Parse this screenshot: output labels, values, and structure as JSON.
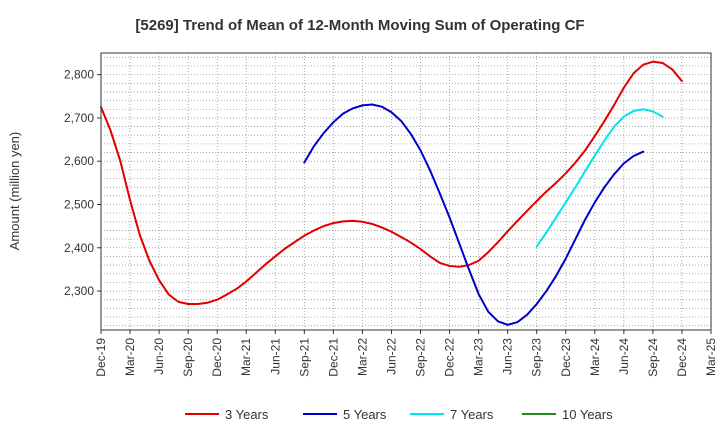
{
  "chart_data": {
    "type": "line",
    "title": "[5269]  Trend of Mean of 12-Month Moving Sum of Operating CF",
    "xlabel": "",
    "ylabel": "Amount (million yen)",
    "ylim": [
      2210,
      2850
    ],
    "yticks": [
      2300,
      2400,
      2500,
      2600,
      2700,
      2800
    ],
    "ytick_labels": [
      "2,300",
      "2,400",
      "2,500",
      "2,600",
      "2,700",
      "2,800"
    ],
    "x_start": "Dec-19",
    "x_end": "Mar-25",
    "xtick_labels": [
      "Dec-19",
      "Mar-20",
      "Jun-20",
      "Sep-20",
      "Dec-20",
      "Mar-21",
      "Jun-21",
      "Sep-21",
      "Dec-21",
      "Mar-22",
      "Jun-22",
      "Sep-22",
      "Dec-22",
      "Mar-23",
      "Jun-23",
      "Sep-23",
      "Dec-23",
      "Mar-24",
      "Jun-24",
      "Sep-24",
      "Dec-24",
      "Mar-25"
    ],
    "grid": true,
    "legend_position": "bottom",
    "series": [
      {
        "name": "3 Years",
        "color": "#e00000",
        "start_month_index": 0,
        "values": [
          2725,
          2670,
          2600,
          2510,
          2430,
          2370,
          2325,
          2292,
          2275,
          2270,
          2270,
          2273,
          2280,
          2292,
          2305,
          2322,
          2342,
          2362,
          2380,
          2398,
          2413,
          2428,
          2440,
          2450,
          2457,
          2461,
          2462,
          2460,
          2455,
          2447,
          2437,
          2425,
          2412,
          2397,
          2380,
          2365,
          2358,
          2356,
          2360,
          2370,
          2390,
          2413,
          2438,
          2462,
          2485,
          2508,
          2530,
          2550,
          2572,
          2597,
          2625,
          2658,
          2693,
          2730,
          2770,
          2803,
          2823,
          2830,
          2827,
          2812,
          2785
        ]
      },
      {
        "name": "5 Years",
        "color": "#0000cc",
        "start_month_index": 21,
        "values": [
          2597,
          2635,
          2665,
          2690,
          2710,
          2722,
          2729,
          2731,
          2726,
          2713,
          2693,
          2663,
          2625,
          2578,
          2525,
          2470,
          2410,
          2350,
          2293,
          2252,
          2230,
          2222,
          2228,
          2245,
          2270,
          2300,
          2335,
          2375,
          2420,
          2465,
          2505,
          2540,
          2570,
          2595,
          2612,
          2622
        ]
      },
      {
        "name": "7 Years",
        "color": "#00e5ee",
        "start_month_index": 45,
        "values": [
          2403,
          2435,
          2470,
          2505,
          2540,
          2577,
          2613,
          2648,
          2680,
          2703,
          2716,
          2720,
          2715,
          2703
        ]
      },
      {
        "name": "10 Years",
        "color": "#228b22",
        "start_month_index": 0,
        "values": []
      }
    ]
  }
}
